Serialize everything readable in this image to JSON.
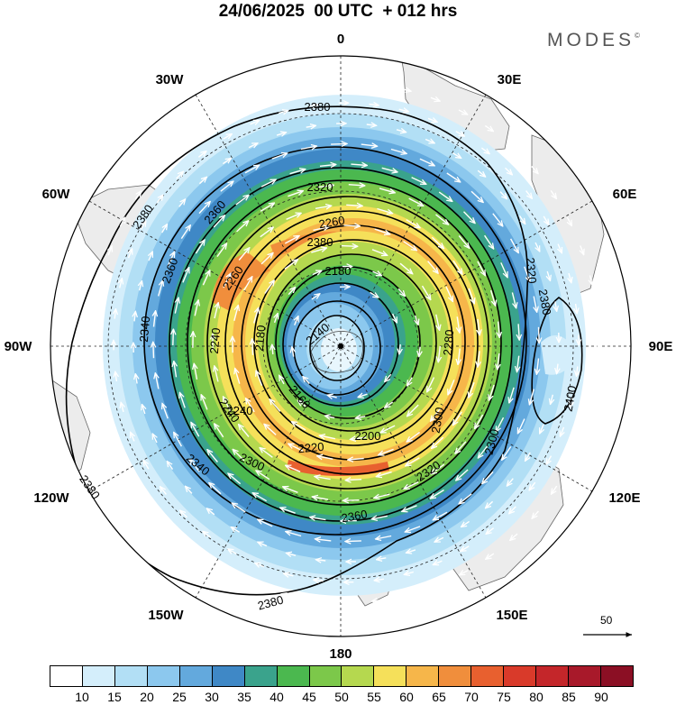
{
  "title": "24/06/2025  00 UTC  + 012 hrs",
  "brand": "MODES",
  "brand_mark": "©",
  "longitude_labels": [
    "0",
    "30E",
    "60E",
    "90E",
    "120E",
    "150E",
    "180",
    "150W",
    "120W",
    "90W",
    "60W",
    "30W"
  ],
  "contour_labels": [
    {
      "text": "2380"
    },
    {
      "text": "2380"
    },
    {
      "text": "2380"
    },
    {
      "text": "2380"
    },
    {
      "text": "2380"
    },
    {
      "text": "2380"
    },
    {
      "text": "2400"
    },
    {
      "text": "2360"
    },
    {
      "text": "2360"
    },
    {
      "text": "2360"
    },
    {
      "text": "2340"
    },
    {
      "text": "2340"
    },
    {
      "text": "2320"
    },
    {
      "text": "2320"
    },
    {
      "text": "2320"
    },
    {
      "text": "2300"
    },
    {
      "text": "2300"
    },
    {
      "text": "2300"
    },
    {
      "text": "2280"
    },
    {
      "text": "2260"
    },
    {
      "text": "2260"
    },
    {
      "text": "2240"
    },
    {
      "text": "2240"
    },
    {
      "text": "2240"
    },
    {
      "text": "2220"
    },
    {
      "text": "2200"
    },
    {
      "text": "2180"
    },
    {
      "text": "2180"
    },
    {
      "text": "2160"
    },
    {
      "text": "2140"
    }
  ],
  "wind_reference": {
    "value": "50"
  },
  "colorbar": {
    "colors": [
      "#ffffff",
      "#d4eefb",
      "#b2dff5",
      "#8cc8ee",
      "#63a9dd",
      "#3f88c6",
      "#3aa38c",
      "#4bb84f",
      "#7cc84a",
      "#b5d84f",
      "#f5e05a",
      "#f6b64a",
      "#f08e3c",
      "#e8602f",
      "#d93a2a",
      "#c4262a",
      "#a8192a",
      "#8b0f24"
    ],
    "ticks": [
      "10",
      "15",
      "20",
      "25",
      "30",
      "35",
      "40",
      "45",
      "50",
      "55",
      "60",
      "65",
      "70",
      "75",
      "80",
      "85",
      "90"
    ]
  }
}
